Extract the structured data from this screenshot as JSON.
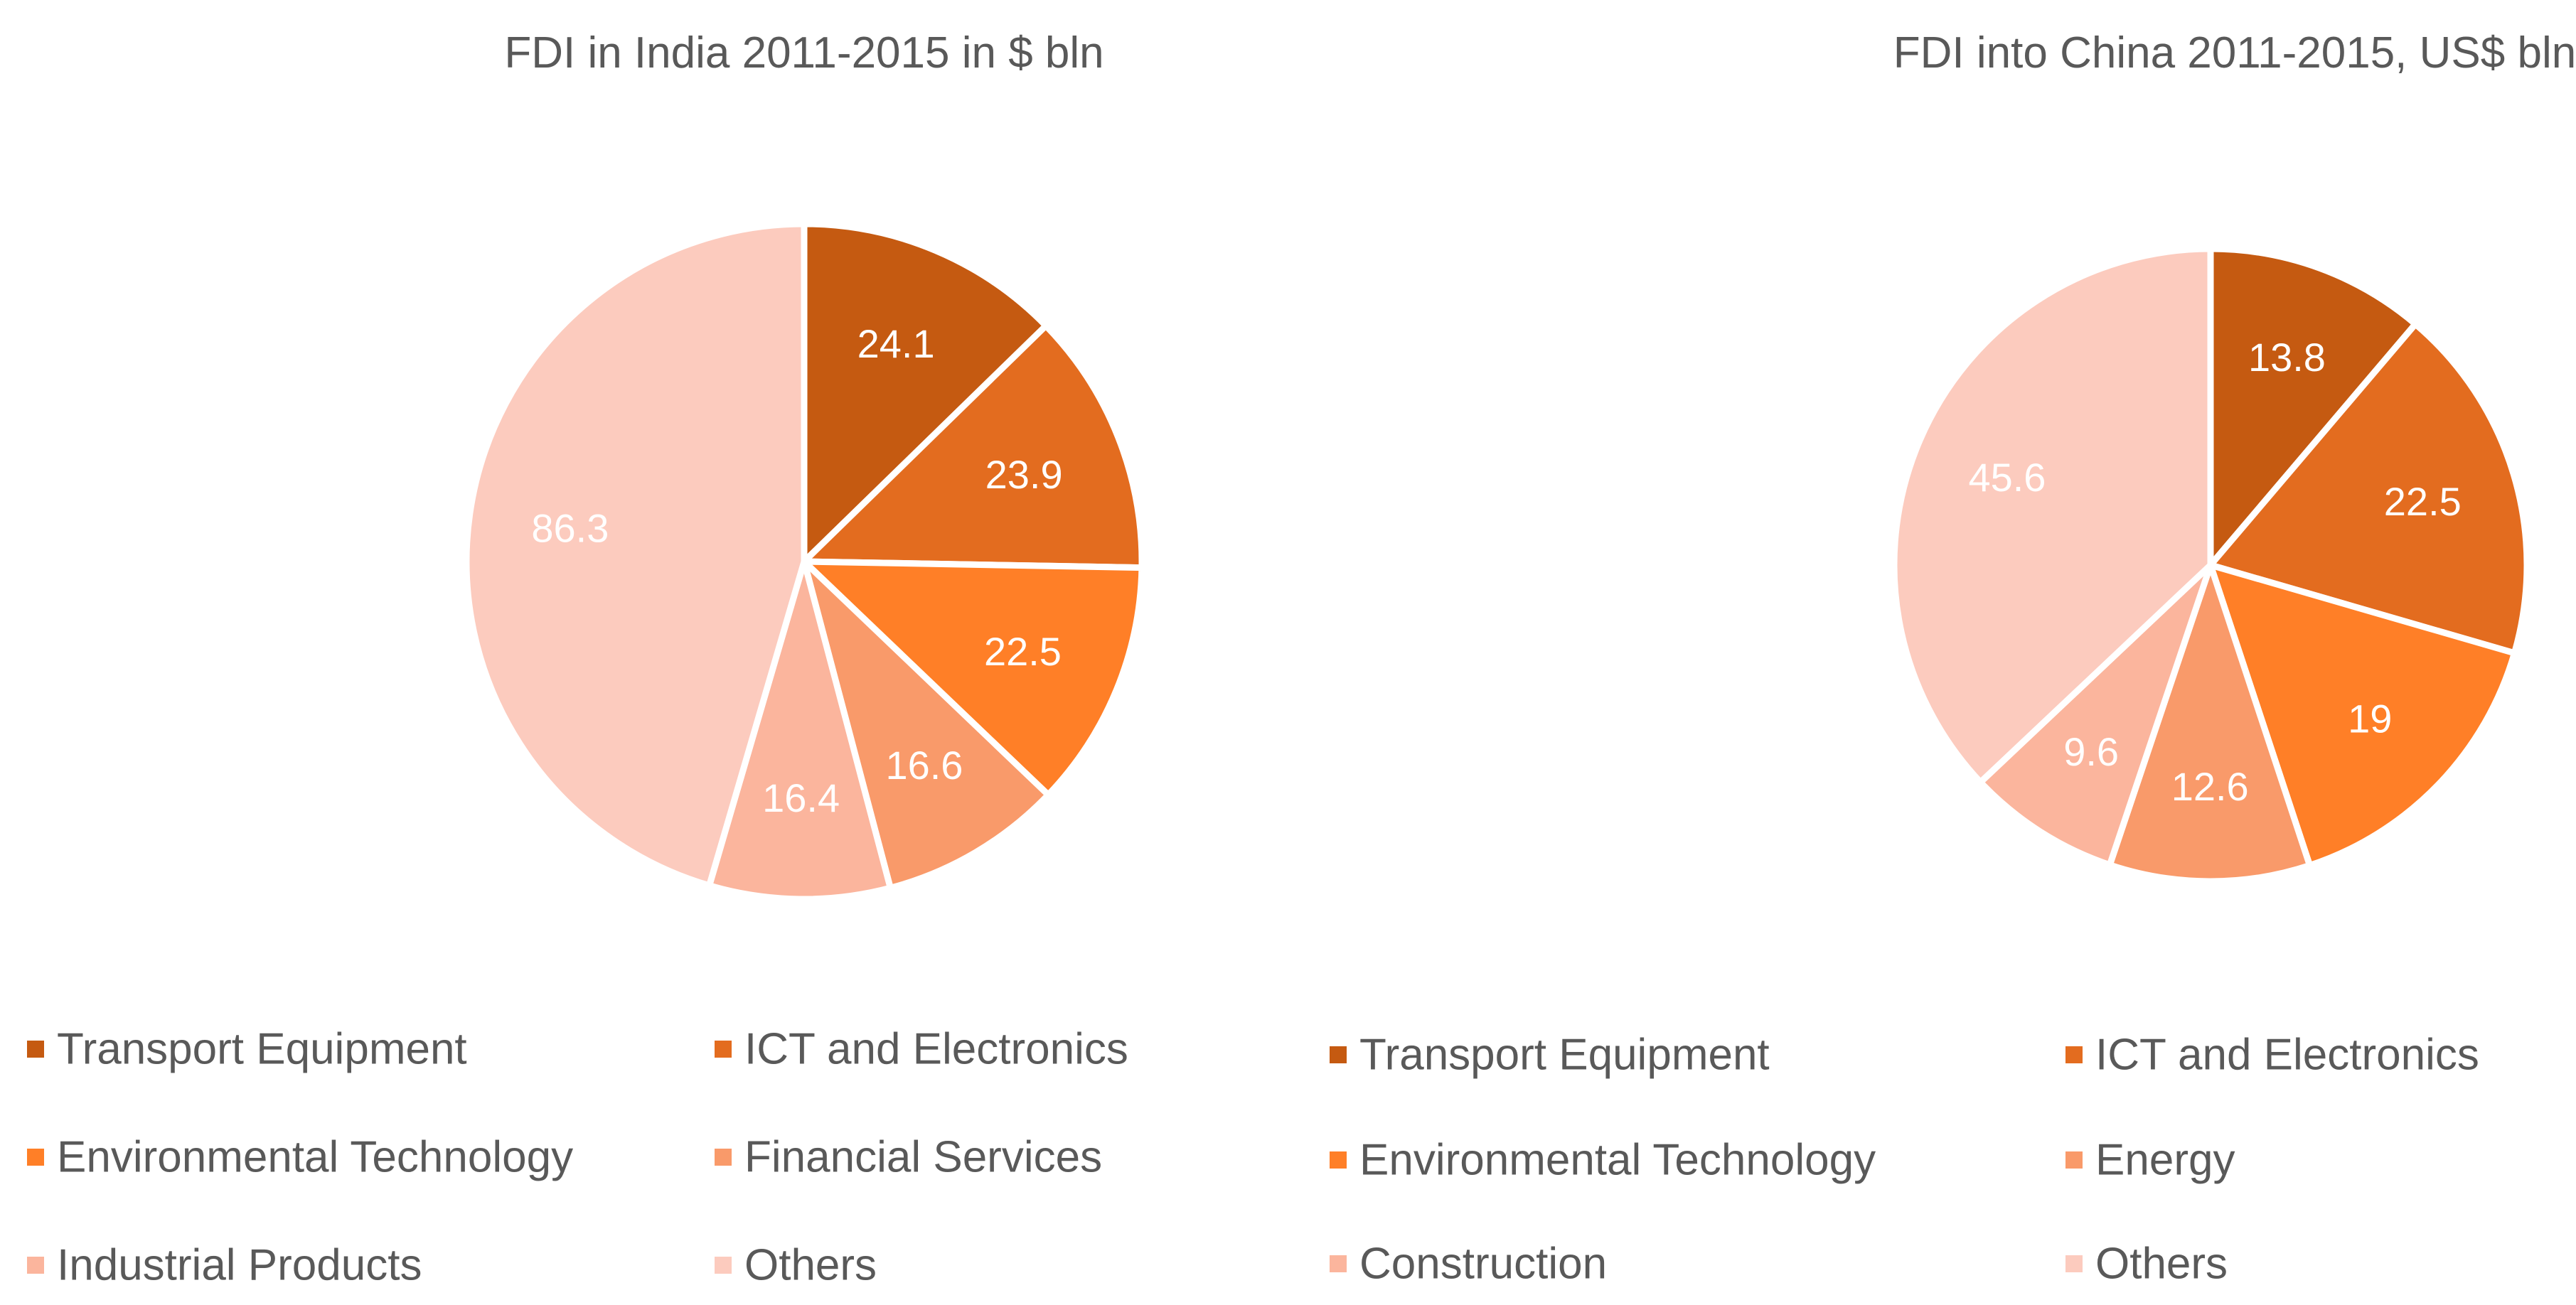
{
  "chart_data": [
    {
      "type": "pie",
      "title": "FDI in India 2011-2015 in $ bln",
      "categories": [
        "Transport Equipment",
        "ICT and Electronics",
        "Environmental Technology",
        "Financial Services",
        "Industrial Products",
        "Others"
      ],
      "values": [
        24.1,
        23.9,
        22.5,
        16.6,
        16.4,
        86.3
      ],
      "labels": [
        "24.1",
        "23.9",
        "22.5",
        "16.6",
        "16.4",
        "86.3"
      ],
      "colors": [
        "#C55A11",
        "#E36C1F",
        "#FF7F27",
        "#F99A6A",
        "#FBB59D",
        "#FCCBBE"
      ],
      "label_colors": [
        "#ffffff",
        "#ffffff",
        "#ffffff",
        "#ffffff",
        "#ffffff",
        "#ffffff"
      ],
      "legend_position": "bottom"
    },
    {
      "type": "pie",
      "title": "FDI into China 2011-2015, US$ bln",
      "categories": [
        "Transport Equipment",
        "ICT and Electronics",
        "Environmental Technology",
        "Energy",
        "Construction",
        "Others"
      ],
      "values": [
        13.8,
        22.5,
        19,
        12.6,
        9.6,
        45.6
      ],
      "labels": [
        "13.8",
        "22.5",
        "19",
        "12.6",
        "9.6",
        "45.6"
      ],
      "colors": [
        "#C55A11",
        "#E36C1F",
        "#FF7F27",
        "#F99A6A",
        "#FBB59D",
        "#FCCBBE"
      ],
      "label_colors": [
        "#ffffff",
        "#ffffff",
        "#ffffff",
        "#ffffff",
        "#ffffff",
        "#ffffff"
      ],
      "legend_position": "bottom"
    }
  ]
}
